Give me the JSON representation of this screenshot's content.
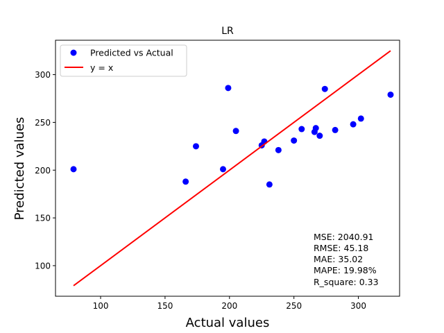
{
  "chart_data": {
    "type": "scatter",
    "title": "LR",
    "xlabel": "Actual values",
    "ylabel": "Predicted values",
    "xlim": [
      65,
      332
    ],
    "ylim": [
      68,
      336
    ],
    "xticks": [
      100,
      150,
      200,
      250,
      300
    ],
    "yticks": [
      100,
      150,
      200,
      250,
      300
    ],
    "grid": false,
    "legend_position": "upper-left",
    "series": [
      {
        "name": "Predicted vs Actual",
        "type": "scatter",
        "color": "#0000ff",
        "points": [
          {
            "x": 79,
            "y": 201
          },
          {
            "x": 166,
            "y": 188
          },
          {
            "x": 174,
            "y": 225
          },
          {
            "x": 195,
            "y": 201
          },
          {
            "x": 199,
            "y": 286
          },
          {
            "x": 205,
            "y": 241
          },
          {
            "x": 225,
            "y": 226
          },
          {
            "x": 227,
            "y": 230
          },
          {
            "x": 231,
            "y": 185
          },
          {
            "x": 238,
            "y": 221
          },
          {
            "x": 250,
            "y": 231
          },
          {
            "x": 256,
            "y": 243
          },
          {
            "x": 266,
            "y": 240
          },
          {
            "x": 267,
            "y": 244
          },
          {
            "x": 270,
            "y": 236
          },
          {
            "x": 274,
            "y": 285
          },
          {
            "x": 282,
            "y": 242
          },
          {
            "x": 296,
            "y": 248
          },
          {
            "x": 302,
            "y": 254
          },
          {
            "x": 325,
            "y": 279
          }
        ]
      },
      {
        "name": "y = x",
        "type": "line",
        "color": "#ff0000",
        "points": [
          {
            "x": 79,
            "y": 79
          },
          {
            "x": 325,
            "y": 325
          }
        ]
      }
    ],
    "annotations": [
      "MSE: 2040.91",
      "RMSE: 45.18",
      "MAE: 35.02",
      "MAPE: 19.98%",
      "R_square: 0.33"
    ]
  }
}
